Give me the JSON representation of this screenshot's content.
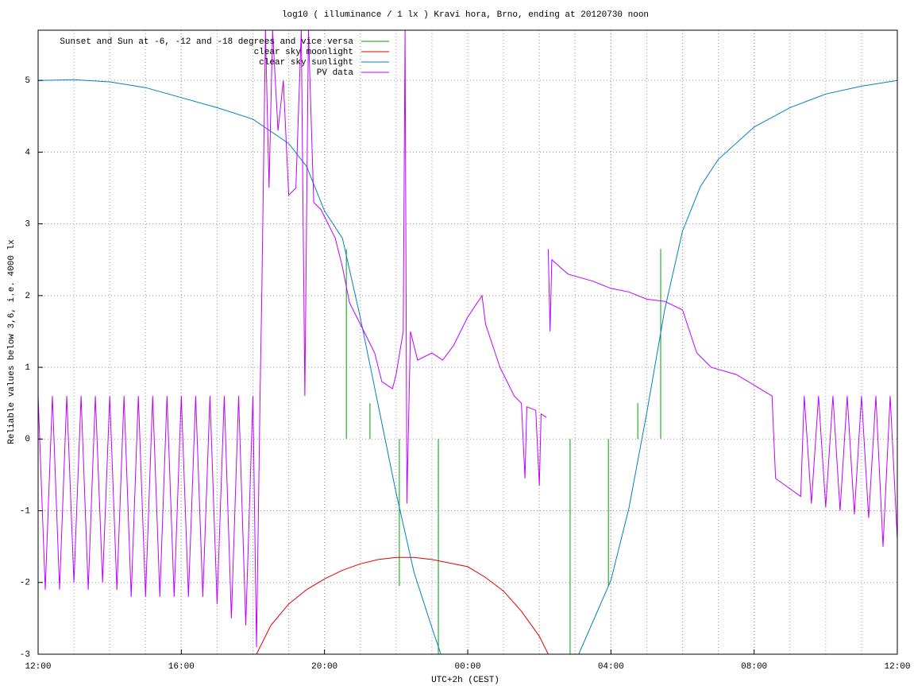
{
  "chart_data": {
    "type": "line",
    "title": "log10 ( illuminance / 1 lx ) Kravi hora, Brno, ending at 20120730 noon",
    "x_label": "UTC+2h (CEST)",
    "y_label": "Reliable values below 3,6, i.e. 4000 lx",
    "xlim": [
      12,
      36
    ],
    "ylim": [
      -3,
      5.7
    ],
    "xticks": [
      {
        "value": 12,
        "label": "12:00"
      },
      {
        "value": 16,
        "label": "16:00"
      },
      {
        "value": 20,
        "label": "20:00"
      },
      {
        "value": 24,
        "label": "00:00"
      },
      {
        "value": 28,
        "label": "04:00"
      },
      {
        "value": 32,
        "label": "08:00"
      },
      {
        "value": 36,
        "label": "12:00"
      }
    ],
    "yticks": [
      -3,
      -2,
      -1,
      0,
      1,
      2,
      3,
      4,
      5
    ],
    "grid": true,
    "minor_x_grid_step": 1,
    "legend": "top-left",
    "series": [
      {
        "name": "Sunset and Sun at -6, -12 and -18 degrees and vice versa",
        "color": "#00a000",
        "style": "impulses",
        "x": [
          20.61,
          21.27,
          22.09,
          23.18,
          26.86,
          27.93,
          28.75,
          29.39
        ],
        "values": [
          2.65,
          0.5,
          -2.05,
          -3,
          -3,
          -2.05,
          0.5,
          2.65
        ]
      },
      {
        "name": "clear sky moonlight",
        "color": "#e00000",
        "style": "lines",
        "x": [
          18.1,
          18.5,
          19,
          19.5,
          20,
          20.5,
          21,
          21.5,
          22,
          22.5,
          23,
          23.5,
          24,
          24.5,
          25,
          25.5,
          26,
          26.25
        ],
        "values": [
          -3,
          -2.6,
          -2.3,
          -2.1,
          -1.95,
          -1.83,
          -1.74,
          -1.68,
          -1.65,
          -1.65,
          -1.68,
          -1.73,
          -1.78,
          -1.93,
          -2.12,
          -2.4,
          -2.75,
          -3
        ]
      },
      {
        "name": "clear sky sunlight",
        "color": "#0080c0",
        "style": "lines",
        "x": [
          12,
          13,
          14,
          15,
          16,
          17,
          18,
          19,
          19.5,
          20,
          20.5,
          21,
          21.5,
          22,
          22.5,
          23,
          23.25,
          27.1,
          28,
          28.5,
          29,
          29.5,
          30,
          30.5,
          31,
          32,
          33,
          34,
          35,
          36
        ],
        "values": [
          5,
          5.01,
          4.98,
          4.9,
          4.76,
          4.62,
          4.46,
          4.12,
          3.8,
          3.18,
          2.8,
          1.69,
          0.47,
          -0.75,
          -1.86,
          -2.63,
          -3,
          -3,
          -1.97,
          -0.97,
          0.36,
          1.8,
          2.9,
          3.52,
          3.9,
          4.35,
          4.62,
          4.81,
          4.92,
          5
        ]
      },
      {
        "name": "PV data",
        "color": "#c000ff",
        "style": "lines",
        "x": [
          12,
          12.2,
          12.4,
          12.6,
          12.8,
          13,
          13.2,
          13.4,
          13.6,
          13.8,
          14,
          14.2,
          14.4,
          14.6,
          14.8,
          15,
          15.2,
          15.4,
          15.6,
          15.8,
          16,
          16.2,
          16.4,
          16.6,
          16.8,
          17,
          17.2,
          17.4,
          17.6,
          17.8,
          18,
          18.1,
          18.2,
          18.25,
          18.35,
          18.45,
          18.55,
          18.7,
          18.85,
          19,
          19.2,
          19.35,
          19.45,
          19.55,
          19.7,
          19.9,
          20.1,
          20.3,
          20.5,
          20.7,
          21,
          21.2,
          21.4,
          21.6,
          21.9,
          22,
          22.2,
          22.25,
          22.3,
          22.4,
          22.6,
          23,
          23.3,
          23.6,
          24,
          24.4,
          24.5,
          24.9,
          25.3,
          25.5,
          25.6,
          25.65,
          25.9,
          26,
          26.05,
          26.2,
          26.22,
          26.25,
          26.3,
          26.35,
          26.8,
          27.5,
          28,
          28.5,
          29,
          29.5,
          30,
          30.2,
          30.4,
          30.8,
          31.5,
          32,
          32.5,
          32.6,
          33.3,
          33.4,
          33.6,
          33.8,
          34,
          34.2,
          34.4,
          34.6,
          34.8,
          35,
          35.2,
          35.4,
          35.6,
          35.8,
          36
        ],
        "values": [
          0.6,
          -2.1,
          0.6,
          -2.1,
          0.6,
          -2.0,
          0.6,
          -2.1,
          0.6,
          -2.0,
          0.6,
          -2.1,
          0.6,
          -2.2,
          0.6,
          -2.2,
          0.6,
          -2.2,
          0.6,
          -2.2,
          0.6,
          -2.2,
          0.6,
          -2.2,
          0.6,
          -2.3,
          0.6,
          -2.5,
          0.6,
          -2.6,
          0.6,
          -2.9,
          0.6,
          2.1,
          5.7,
          3.5,
          5.7,
          4.3,
          5.0,
          3.4,
          3.5,
          5.7,
          0.6,
          5.7,
          3.3,
          3.2,
          3.0,
          2.8,
          2.4,
          1.9,
          1.6,
          1.4,
          1.2,
          0.8,
          0.7,
          0.9,
          1.5,
          5.7,
          -0.9,
          1.5,
          1.1,
          1.2,
          1.1,
          1.3,
          1.7,
          2.0,
          1.6,
          1.0,
          0.6,
          0.5,
          -0.55,
          0.45,
          0.4,
          -0.65,
          0.35,
          0.3,
          null,
          2.65,
          1.5,
          2.5,
          2.3,
          2.2,
          2.1,
          2.05,
          1.95,
          1.92,
          1.8,
          1.5,
          1.2,
          1.0,
          0.9,
          0.75,
          0.6,
          -0.55,
          -0.8,
          0.6,
          -0.9,
          0.6,
          -0.95,
          0.6,
          -1.0,
          0.6,
          -1.05,
          0.6,
          -1.1,
          0.6,
          -1.5,
          0.6,
          -1.4
        ]
      }
    ]
  }
}
